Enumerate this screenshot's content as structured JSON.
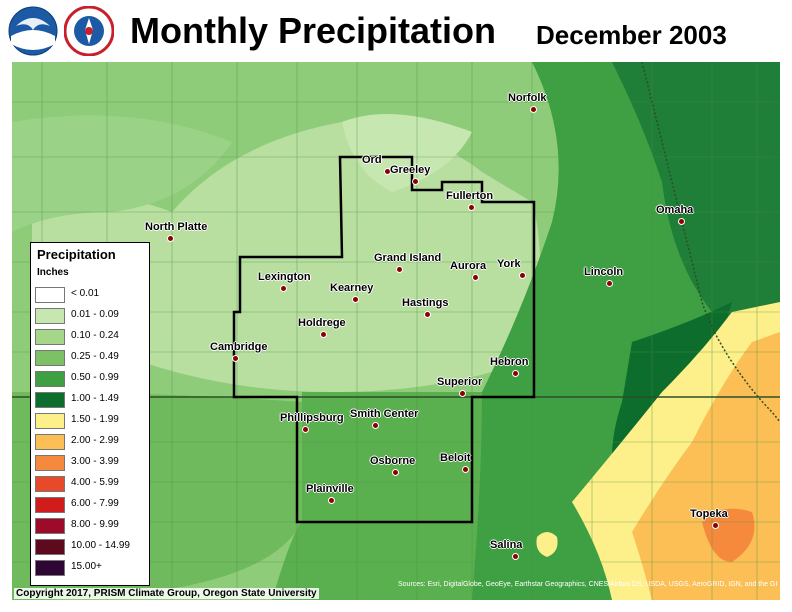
{
  "header": {
    "title": "Monthly Precipitation",
    "date": "December 2003"
  },
  "logos": [
    {
      "name": "noaa-logo",
      "text": "NOAA",
      "color": "#1d5aa6"
    },
    {
      "name": "nws-logo",
      "text": "NATIONAL WEATHER SERVICE",
      "color": "#c8202a"
    }
  ],
  "legend": {
    "title": "Precipitation",
    "units": "Inches",
    "items": [
      {
        "label": "< 0.01",
        "color": "#ffffff"
      },
      {
        "label": "0.01 - 0.09",
        "color": "#c7e7b0"
      },
      {
        "label": "0.10 - 0.24",
        "color": "#a6d68a"
      },
      {
        "label": "0.25 - 0.49",
        "color": "#7cc264"
      },
      {
        "label": "0.50 - 0.99",
        "color": "#3ea043"
      },
      {
        "label": "1.00 - 1.49",
        "color": "#0d6d2c"
      },
      {
        "label": "1.50 - 1.99",
        "color": "#fdf08a"
      },
      {
        "label": "2.00 - 2.99",
        "color": "#fbbf55"
      },
      {
        "label": "3.00 - 3.99",
        "color": "#f58a3c"
      },
      {
        "label": "4.00 - 5.99",
        "color": "#e8492a"
      },
      {
        "label": "6.00 - 7.99",
        "color": "#d11c1c"
      },
      {
        "label": "8.00 - 9.99",
        "color": "#9e0a2a"
      },
      {
        "label": "10.00 - 14.99",
        "color": "#5e0a1e"
      },
      {
        "label": "15.00+",
        "color": "#2e0633"
      }
    ]
  },
  "cities": [
    "Norfolk",
    "Ord",
    "Greeley",
    "Fullerton",
    "Omaha",
    "North Platte",
    "Grand Island",
    "Aurora",
    "York",
    "Lincoln",
    "Lexington",
    "Kearney",
    "Hastings",
    "Holdrege",
    "Cambridge",
    "Hebron",
    "Superior",
    "Phillipsburg",
    "Smith Center",
    "Osborne",
    "Beloit",
    "Plainville",
    "Topeka",
    "Salina"
  ],
  "footer": {
    "credit": "Copyright 2017, PRISM Climate Group, Oregon State University",
    "attribution": "Sources: Esri, DigitalGlobe, GeoEye, Earthstar Geographics, CNES/Airbus DS, USDA, USGS, AeroGRID, IGN, and the GIS User Community"
  }
}
